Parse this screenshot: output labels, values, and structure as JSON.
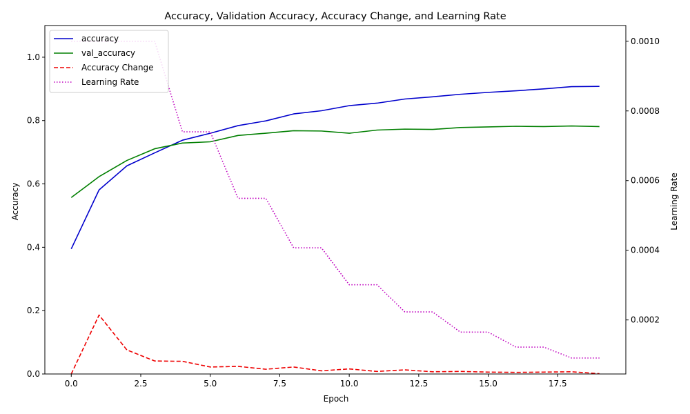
{
  "chart_data": {
    "type": "line",
    "title": "Accuracy, Validation Accuracy, Accuracy Change, and Learning Rate",
    "xlabel": "Epoch",
    "ylabel": "Accuracy",
    "y2label": "Learning Rate",
    "xlim": [
      -0.95,
      19.95
    ],
    "ylim": [
      0,
      1.1
    ],
    "y2lim": [
      4.49e-05,
      0.0010451
    ],
    "x_ticks": [
      0.0,
      2.5,
      5.0,
      7.5,
      10.0,
      12.5,
      15.0,
      17.5
    ],
    "x_tick_labels": [
      "0.0",
      "2.5",
      "5.0",
      "7.5",
      "10.0",
      "12.5",
      "15.0",
      "17.5"
    ],
    "y_ticks": [
      0.0,
      0.2,
      0.4,
      0.6,
      0.8,
      1.0
    ],
    "y_tick_labels": [
      "0.0",
      "0.2",
      "0.4",
      "0.6",
      "0.8",
      "1.0"
    ],
    "y2_ticks": [
      0.0002,
      0.0004,
      0.0006,
      0.0008,
      0.001
    ],
    "y2_tick_labels": [
      "0.0002",
      "0.0004",
      "0.0006",
      "0.0008",
      "0.0010"
    ],
    "legend_position": "top-left",
    "grid": false,
    "x": [
      0,
      1,
      2,
      3,
      4,
      5,
      6,
      7,
      8,
      9,
      10,
      11,
      12,
      13,
      14,
      15,
      16,
      17,
      18,
      19
    ],
    "series": [
      {
        "name": "accuracy",
        "axis": "left",
        "color": "#0000cc",
        "style": "solid",
        "values": [
          0.395,
          0.581,
          0.657,
          0.698,
          0.738,
          0.76,
          0.784,
          0.799,
          0.821,
          0.831,
          0.847,
          0.855,
          0.868,
          0.875,
          0.883,
          0.889,
          0.894,
          0.9,
          0.907,
          0.908
        ]
      },
      {
        "name": "val_accuracy",
        "axis": "left",
        "color": "#007f00",
        "style": "solid",
        "values": [
          0.557,
          0.623,
          0.674,
          0.711,
          0.729,
          0.733,
          0.753,
          0.76,
          0.768,
          0.767,
          0.76,
          0.77,
          0.773,
          0.772,
          0.778,
          0.78,
          0.782,
          0.781,
          0.783,
          0.781
        ]
      },
      {
        "name": "Accuracy Change",
        "axis": "left",
        "color": "#ee0000",
        "style": "dashed",
        "values": [
          0.0,
          0.186,
          0.076,
          0.041,
          0.04,
          0.022,
          0.024,
          0.015,
          0.022,
          0.01,
          0.016,
          0.008,
          0.013,
          0.007,
          0.008,
          0.006,
          0.005,
          0.006,
          0.007,
          0.001
        ]
      },
      {
        "name": "Learning Rate",
        "axis": "right",
        "color": "#bf00bf",
        "style": "dotted",
        "values": [
          0.001,
          0.001,
          0.001,
          0.001,
          0.00074,
          0.00074,
          0.000549,
          0.000549,
          0.000407,
          0.000407,
          0.000301,
          0.000301,
          0.000223,
          0.000223,
          0.000165,
          0.000165,
          0.000122,
          0.000122,
          9.07e-05,
          9.07e-05
        ]
      }
    ]
  }
}
